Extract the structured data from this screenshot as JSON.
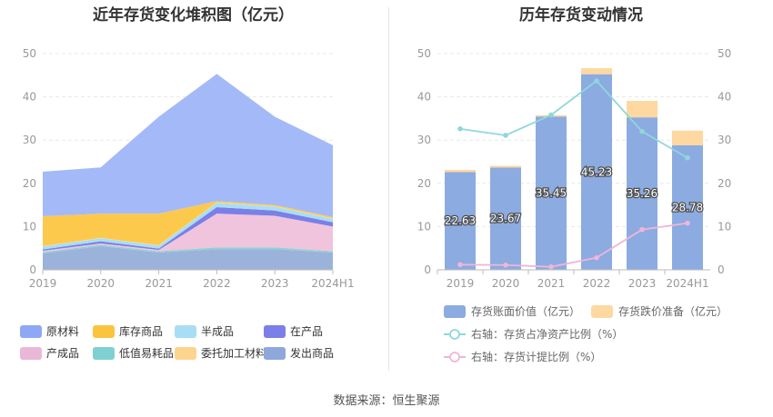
{
  "left_chart": {
    "title": "近年存货变化堆积图（亿元）",
    "chart_data": {
      "type": "area",
      "stacked": true,
      "categories": [
        "2019",
        "2020",
        "2021",
        "2022",
        "2023",
        "2024H1"
      ],
      "ylim": [
        0,
        50
      ],
      "yticks": [
        0,
        10,
        20,
        30,
        40,
        50
      ],
      "grid": true,
      "legend_position": "bottom",
      "series": [
        {
          "name": "发出商品",
          "color": "#9bb3da",
          "values": [
            3.8,
            5.5,
            4.0,
            4.8,
            4.8,
            4.0
          ]
        },
        {
          "name": "低值易耗品",
          "color": "#8ed3d3",
          "values": [
            0.3,
            0.3,
            0.3,
            0.4,
            0.4,
            0.3
          ]
        },
        {
          "name": "产成品",
          "color": "#f0c4dc",
          "values": [
            0.3,
            0.3,
            0.3,
            7.8,
            7.3,
            5.7
          ]
        },
        {
          "name": "在产品",
          "color": "#7b7fe8",
          "values": [
            0.3,
            0.5,
            0.3,
            1.5,
            1.2,
            1.0
          ]
        },
        {
          "name": "半成品",
          "color": "#a8def5",
          "values": [
            0.7,
            0.7,
            0.7,
            1.0,
            0.9,
            0.8
          ]
        },
        {
          "name": "委托加工材料",
          "color": "#fdd99a",
          "values": [
            0.1,
            0.1,
            0.1,
            0.1,
            0.1,
            0.1
          ]
        },
        {
          "name": "库存商品",
          "color": "#fcc94c",
          "values": [
            6.9,
            5.6,
            7.3,
            0.3,
            0.3,
            0.3
          ]
        },
        {
          "name": "原材料",
          "color": "#a4b9f7",
          "values": [
            10.3,
            10.7,
            22.4,
            29.4,
            20.4,
            16.6
          ]
        }
      ]
    },
    "legend": [
      {
        "name": "原材料",
        "color": "#8fa8f5"
      },
      {
        "name": "库存商品",
        "color": "#fbc43f"
      },
      {
        "name": "半成品",
        "color": "#a8def5"
      },
      {
        "name": "在产品",
        "color": "#7b7fe8"
      },
      {
        "name": "产成品",
        "color": "#eab8d6"
      },
      {
        "name": "低值易耗品",
        "color": "#7fd0d0"
      },
      {
        "name": "委托加工材料",
        "color": "#fdd48e"
      },
      {
        "name": "发出商品",
        "color": "#8fa8dc"
      }
    ]
  },
  "right_chart": {
    "title": "历年存货变动情况",
    "chart_data": {
      "type": "bar",
      "categories": [
        "2019",
        "2020",
        "2021",
        "2022",
        "2023",
        "2024H1"
      ],
      "ylim": [
        0,
        50
      ],
      "y2lim": [
        0,
        50
      ],
      "yticks": [
        0,
        10,
        20,
        30,
        40,
        50
      ],
      "grid": true,
      "legend_position": "bottom",
      "series": [
        {
          "name": "存货账面价值（亿元）",
          "kind": "bar",
          "color": "#8cabe0",
          "values": [
            22.63,
            23.67,
            35.45,
            45.23,
            35.26,
            28.78
          ],
          "labels": [
            "22.63",
            "23.67",
            "35.45",
            "45.23",
            "35.26",
            "28.78"
          ]
        },
        {
          "name": "存货跌价准备（亿元）",
          "kind": "bar-stack",
          "color": "#fdd8a0",
          "values": [
            0.5,
            0.4,
            0.3,
            1.4,
            3.8,
            3.4
          ]
        },
        {
          "name": "右轴：存货占净资产比例（%）",
          "kind": "line",
          "color": "#8fd7db",
          "values": [
            32.6,
            31.1,
            35.8,
            43.7,
            32.0,
            25.9
          ]
        },
        {
          "name": "右轴：存货计提比例（%）",
          "kind": "line",
          "color": "#efb6d8",
          "values": [
            1.2,
            1.1,
            0.7,
            2.8,
            9.3,
            10.8
          ]
        }
      ]
    }
  },
  "source": "数据来源：恒生聚源"
}
